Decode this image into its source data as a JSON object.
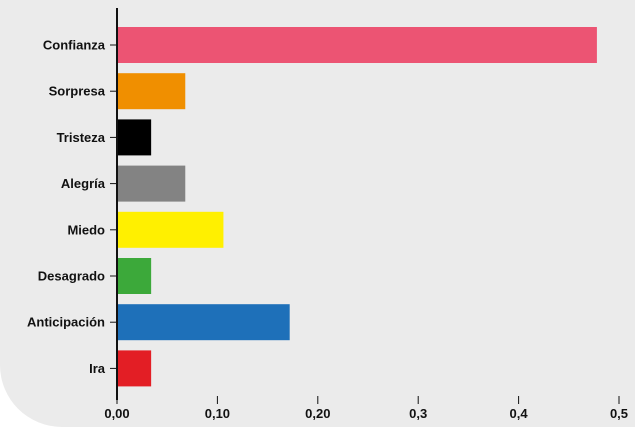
{
  "chart_data": {
    "type": "bar",
    "orientation": "horizontal",
    "title": "",
    "xlabel": "",
    "ylabel": "",
    "categories": [
      "Confianza",
      "Sorpresa",
      "Tristeza",
      "Alegría",
      "Miedo",
      "Desagrado",
      "Anticipación",
      "Ira"
    ],
    "values": [
      0.478,
      0.068,
      0.034,
      0.068,
      0.106,
      0.034,
      0.172,
      0.034
    ],
    "colors": [
      "#ec5473",
      "#f08f00",
      "#000000",
      "#838383",
      "#fff000",
      "#3ca93a",
      "#1e70b9",
      "#e31e25"
    ],
    "xlim": [
      0,
      0.5
    ],
    "x_ticks": [
      0,
      0.1,
      0.2,
      0.3,
      0.4,
      0.5
    ],
    "x_tick_labels": [
      "0,00",
      "0,10",
      "0,20",
      "0,3",
      "0,4",
      "0,5"
    ],
    "grid": false,
    "legend": "none",
    "background_color": "#ebebeb"
  }
}
